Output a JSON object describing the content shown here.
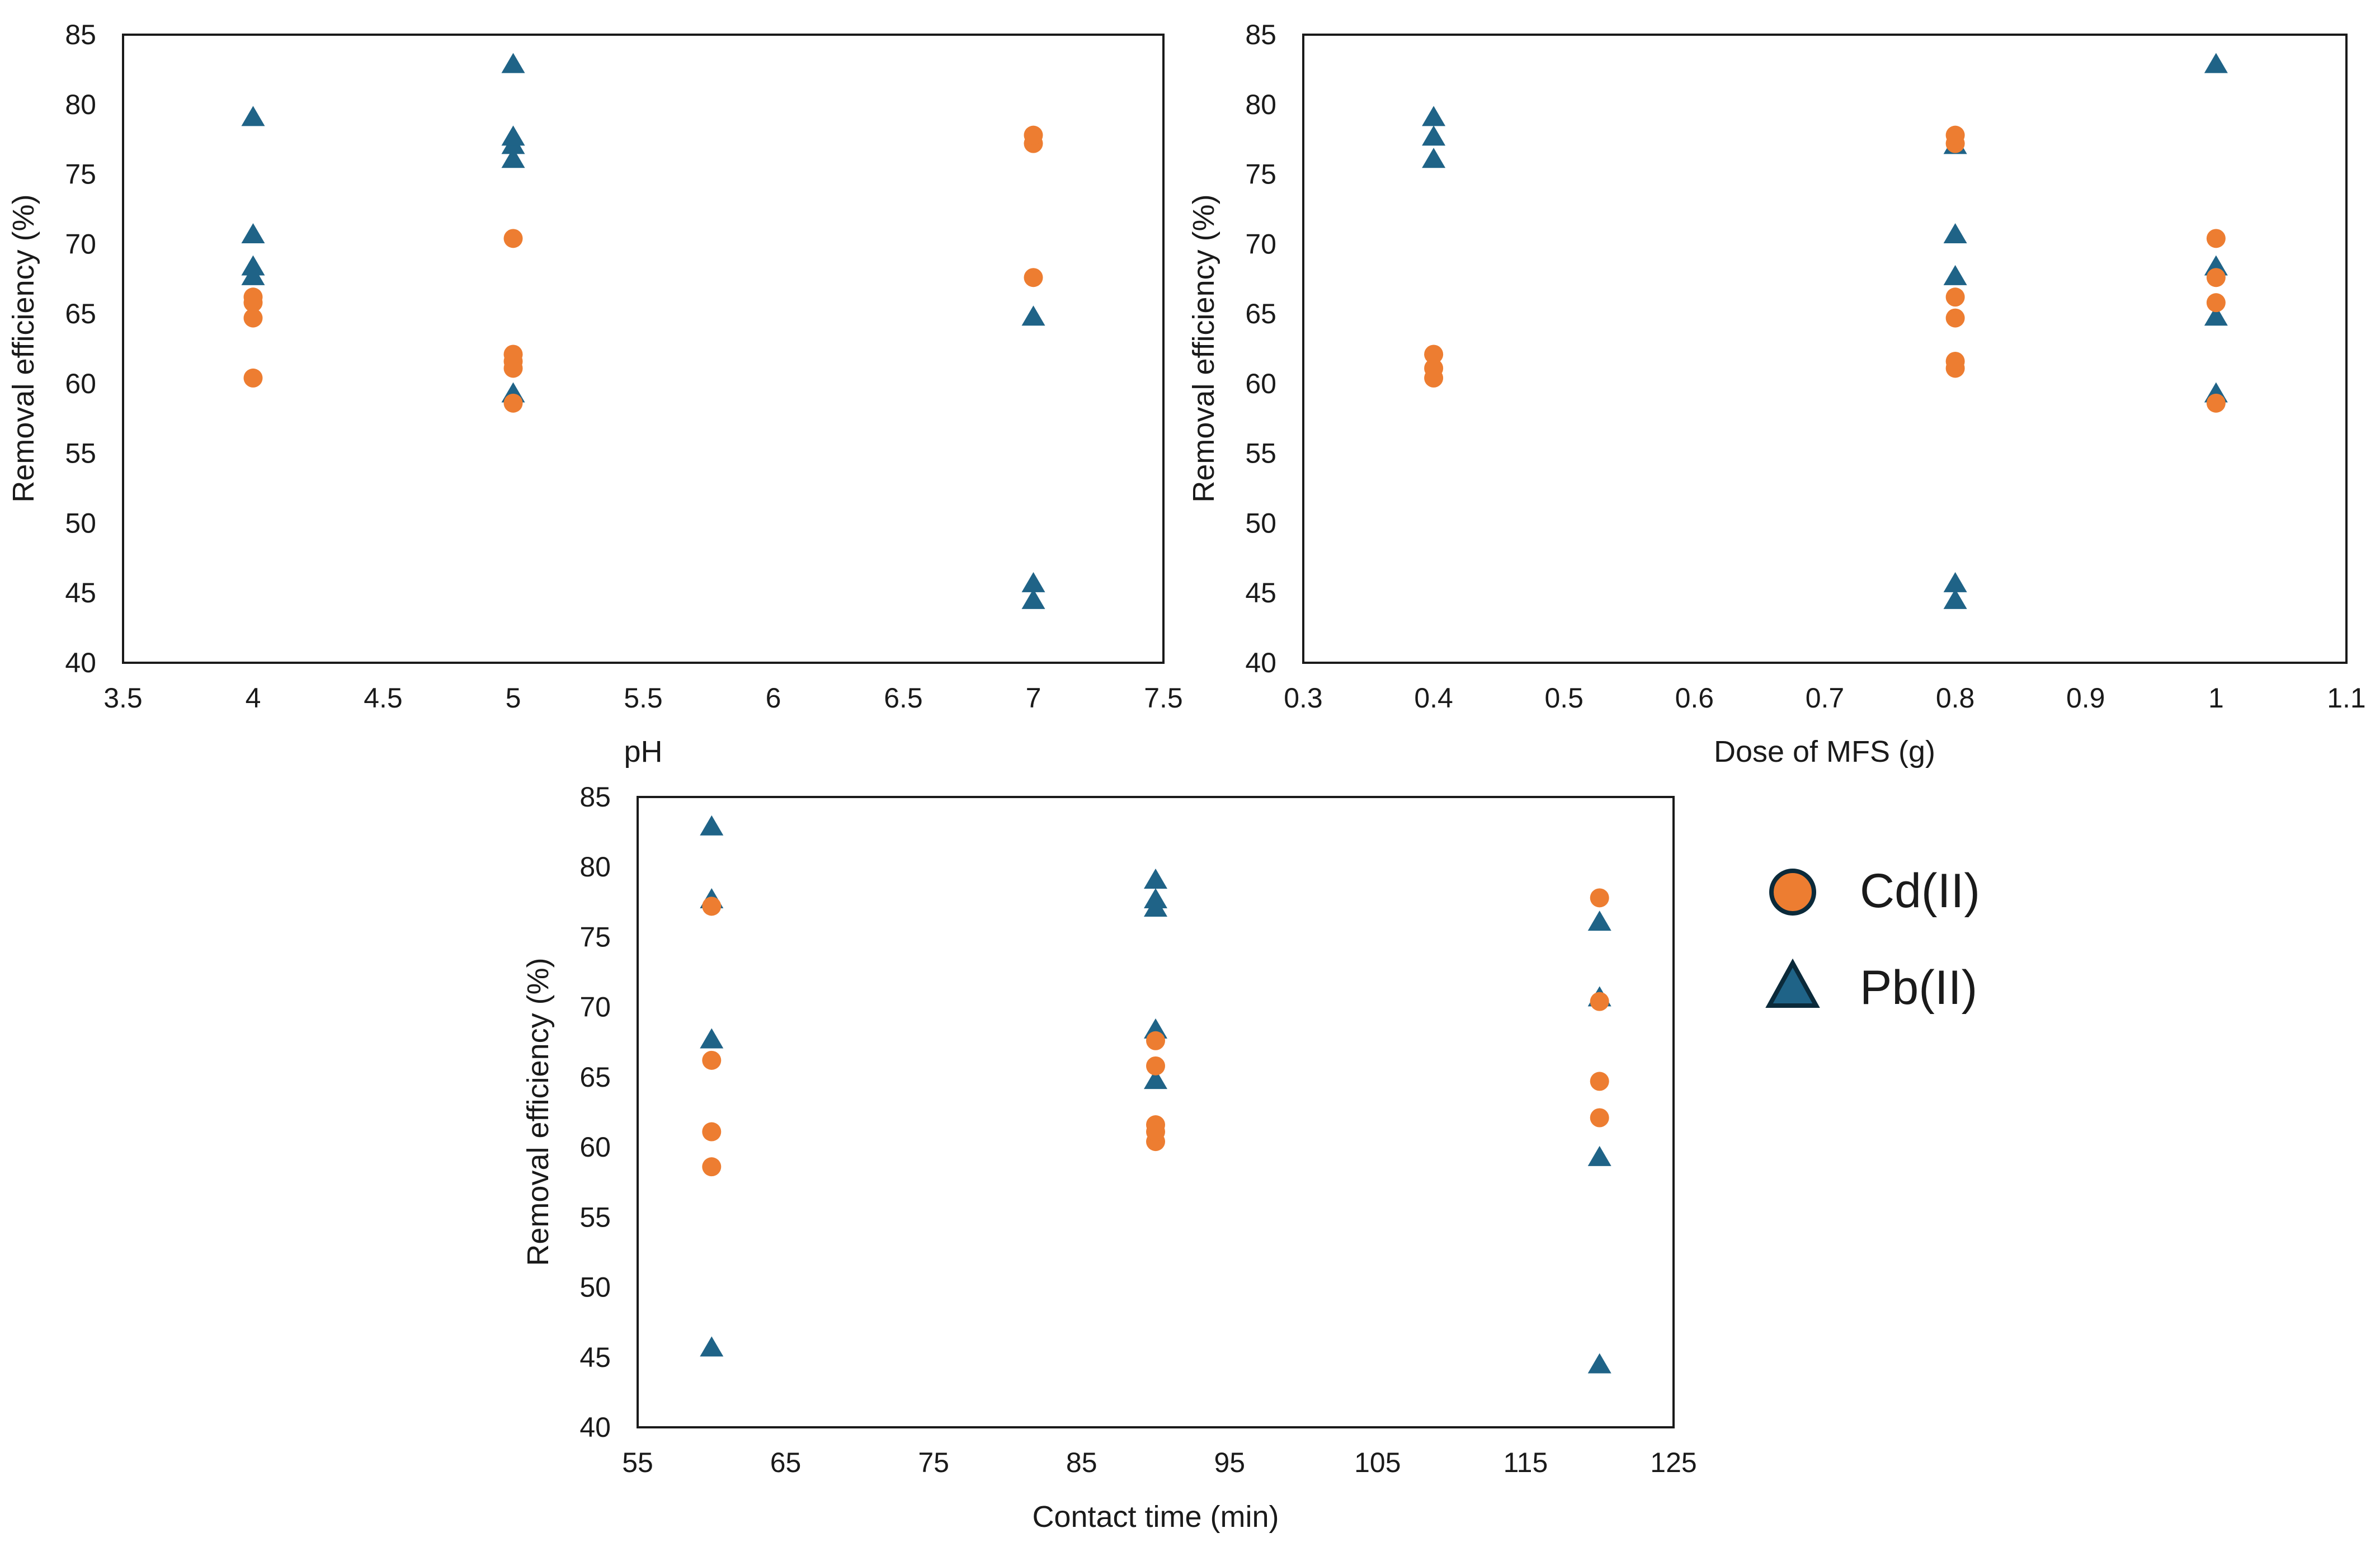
{
  "colors": {
    "cd": "#ed7d31",
    "pb": "#1f6387",
    "outline": "#0b2a3a",
    "axis": "#1a1a1a"
  },
  "legend": {
    "items": [
      {
        "label": "Cd(II)",
        "marker": "circle"
      },
      {
        "label": "Pb(II)",
        "marker": "triangle"
      }
    ]
  },
  "chart_data": [
    {
      "type": "scatter",
      "title": "",
      "xlabel": "pH",
      "ylabel": "Removal efficiency (%)",
      "xlim": [
        3.5,
        7.5
      ],
      "ylim": [
        40,
        85
      ],
      "xticks": [
        "3.5",
        "4",
        "4.5",
        "5",
        "5.5",
        "6",
        "6.5",
        "7",
        "7.5"
      ],
      "yticks": [
        "40",
        "45",
        "50",
        "55",
        "60",
        "65",
        "70",
        "75",
        "80",
        "85"
      ],
      "series": [
        {
          "name": "Cd(II)",
          "x": [
            4,
            4,
            4,
            4,
            5,
            5,
            5,
            5,
            5,
            7,
            7,
            7
          ],
          "y": [
            60.4,
            64.7,
            65.8,
            66.2,
            58.6,
            61.1,
            61.6,
            62.1,
            70.4,
            67.6,
            77.2,
            77.8
          ]
        },
        {
          "name": "Pb(II)",
          "x": [
            4,
            4,
            4,
            4,
            5,
            5,
            5,
            5,
            5,
            7,
            7,
            7
          ],
          "y": [
            67.6,
            68.3,
            70.6,
            79.0,
            59.2,
            76.0,
            77.0,
            77.6,
            82.8,
            64.7,
            44.4,
            45.6
          ]
        }
      ]
    },
    {
      "type": "scatter",
      "title": "",
      "xlabel": "Dose of MFS (g)",
      "ylabel": "Removal efficiency (%)",
      "xlim": [
        0.3,
        1.1
      ],
      "ylim": [
        40,
        85
      ],
      "xticks": [
        "0.3",
        "0.4",
        "0.5",
        "0.6",
        "0.7",
        "0.8",
        "0.9",
        "1",
        "1.1"
      ],
      "yticks": [
        "40",
        "45",
        "50",
        "55",
        "60",
        "65",
        "70",
        "75",
        "80",
        "85"
      ],
      "series": [
        {
          "name": "Cd(II)",
          "x": [
            0.4,
            0.4,
            0.4,
            0.8,
            0.8,
            0.8,
            0.8,
            0.8,
            0.8,
            1,
            1,
            1,
            1
          ],
          "y": [
            60.4,
            61.1,
            62.1,
            61.1,
            61.6,
            64.7,
            66.2,
            77.2,
            77.8,
            58.6,
            65.8,
            67.6,
            70.4
          ]
        },
        {
          "name": "Pb(II)",
          "x": [
            0.4,
            0.4,
            0.4,
            0.8,
            0.8,
            0.8,
            0.8,
            0.8,
            1,
            1,
            1,
            1
          ],
          "y": [
            76.0,
            77.6,
            79.0,
            44.4,
            45.6,
            67.6,
            70.6,
            77.0,
            59.2,
            64.7,
            68.3,
            82.8
          ]
        }
      ]
    },
    {
      "type": "scatter",
      "title": "",
      "xlabel": "Contact time (min)",
      "ylabel": "Removal efficiency (%)",
      "xlim": [
        55,
        125
      ],
      "ylim": [
        40,
        85
      ],
      "xticks": [
        "55",
        "65",
        "75",
        "85",
        "95",
        "105",
        "115",
        "125"
      ],
      "yticks": [
        "40",
        "45",
        "50",
        "55",
        "60",
        "65",
        "70",
        "75",
        "80",
        "85"
      ],
      "series": [
        {
          "name": "Cd(II)",
          "x": [
            60,
            60,
            60,
            60,
            90,
            90,
            90,
            90,
            90,
            120,
            120,
            120,
            120
          ],
          "y": [
            58.6,
            61.1,
            66.2,
            77.2,
            60.4,
            61.6,
            65.8,
            67.6,
            61.1,
            62.1,
            64.7,
            70.4,
            77.8
          ]
        },
        {
          "name": "Pb(II)",
          "x": [
            60,
            60,
            60,
            60,
            90,
            90,
            90,
            90,
            90,
            120,
            120,
            120,
            120
          ],
          "y": [
            45.6,
            67.6,
            77.6,
            82.8,
            64.7,
            68.3,
            77.0,
            77.6,
            79.0,
            44.4,
            59.2,
            70.6,
            76.0
          ]
        }
      ]
    }
  ]
}
